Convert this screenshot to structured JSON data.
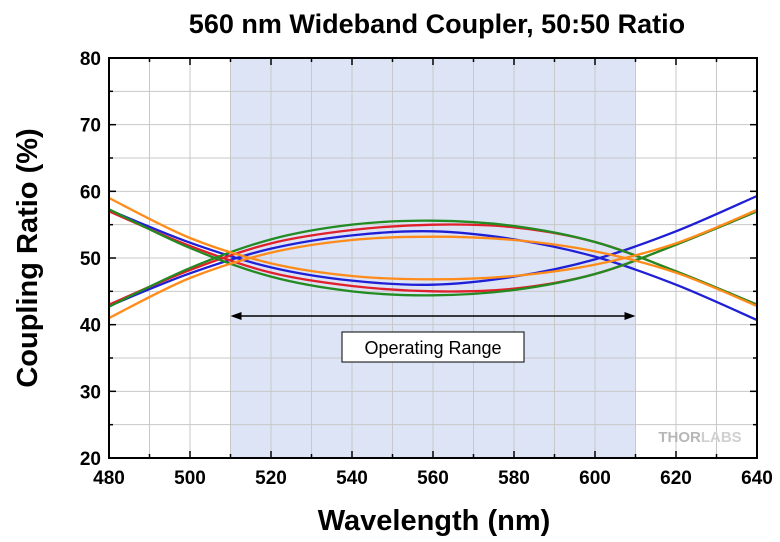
{
  "chart_data": {
    "type": "line",
    "title": "560 nm Wideband Coupler, 50:50 Ratio",
    "xlabel": "Wavelength (nm)",
    "ylabel": "Coupling Ratio (%)",
    "xlim": [
      480,
      640
    ],
    "ylim": [
      20,
      80
    ],
    "xticks": [
      480,
      500,
      520,
      540,
      560,
      580,
      600,
      620,
      640
    ],
    "yticks": [
      20,
      30,
      40,
      50,
      60,
      70,
      80
    ],
    "grid": true,
    "shaded_region": {
      "x": [
        510,
        610
      ],
      "color": "#dce4f6"
    },
    "annotation": {
      "text": "Operating Range",
      "x_from": 510,
      "x_to": 610,
      "y": 41.3,
      "label_y": 36.5,
      "label_x": 560
    },
    "watermark": "THORLABS",
    "series": [
      {
        "color": "#1f1fd6",
        "x": [
          480,
          500,
          520,
          540,
          560,
          580,
          600,
          620,
          640
        ],
        "y": [
          57.2,
          52.3,
          48.6,
          46.6,
          46.0,
          47.2,
          49.8,
          54.0,
          59.3
        ]
      },
      {
        "color": "#1f1fd6",
        "x": [
          480,
          500,
          520,
          540,
          560,
          580,
          600,
          620,
          640
        ],
        "y": [
          42.8,
          47.7,
          51.4,
          53.4,
          54.0,
          52.8,
          50.2,
          46.0,
          40.7
        ]
      },
      {
        "color": "#e0202a",
        "x": [
          480,
          500,
          520,
          540,
          560,
          580,
          600,
          620,
          640
        ],
        "y": [
          57.0,
          51.8,
          47.8,
          45.8,
          45.0,
          45.4,
          47.6,
          52.0,
          57.0
        ]
      },
      {
        "color": "#e0202a",
        "x": [
          480,
          500,
          520,
          540,
          560,
          580,
          600,
          620,
          640
        ],
        "y": [
          43.0,
          48.2,
          52.2,
          54.2,
          55.0,
          54.6,
          52.4,
          48.0,
          43.0
        ]
      },
      {
        "color": "#228b22",
        "x": [
          480,
          500,
          520,
          540,
          560,
          580,
          600,
          620,
          640
        ],
        "y": [
          57.3,
          51.5,
          47.2,
          45.0,
          44.4,
          45.2,
          47.6,
          52.0,
          57.0
        ]
      },
      {
        "color": "#228b22",
        "x": [
          480,
          500,
          520,
          540,
          560,
          580,
          600,
          620,
          640
        ],
        "y": [
          42.7,
          48.5,
          52.8,
          55.0,
          55.6,
          54.8,
          52.4,
          48.0,
          43.0
        ]
      },
      {
        "color": "#ff8c1a",
        "x": [
          480,
          500,
          520,
          540,
          560,
          580,
          600,
          620,
          640
        ],
        "y": [
          59.0,
          53.0,
          49.2,
          47.3,
          46.8,
          47.3,
          49.0,
          52.2,
          57.2
        ]
      },
      {
        "color": "#ff8c1a",
        "x": [
          480,
          500,
          520,
          540,
          560,
          580,
          600,
          620,
          640
        ],
        "y": [
          41.0,
          47.0,
          50.8,
          52.7,
          53.2,
          52.7,
          51.0,
          47.8,
          42.8
        ]
      }
    ]
  }
}
